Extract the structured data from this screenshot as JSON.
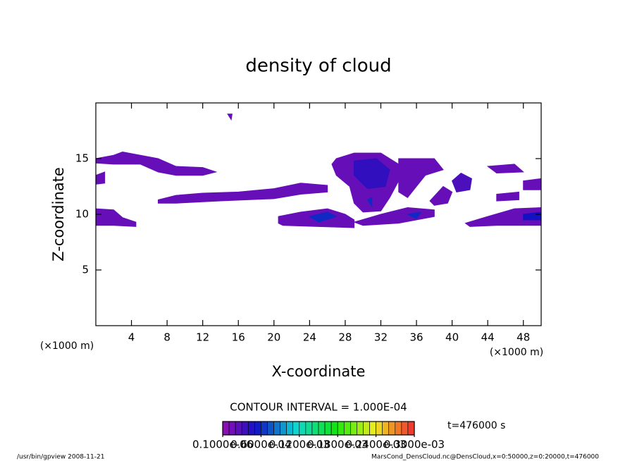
{
  "chart_data": {
    "type": "contour",
    "title": "density of cloud",
    "x_label": "X-coordinate",
    "y_label": "Z-coordinate",
    "x_unit_left": "(×1000 m)",
    "x_unit_right": "(×1000 m)",
    "xlim": [
      0,
      50
    ],
    "ylim": [
      0,
      20
    ],
    "xticks": [
      4,
      8,
      12,
      16,
      20,
      24,
      28,
      32,
      36,
      40,
      44,
      48
    ],
    "yticks": [
      5,
      10,
      15
    ],
    "contour_interval": "CONTOUR INTERVAL = 1.000E-04",
    "time_label": "t=476000 s",
    "colorbar_lim": [
      0,
      0.0003
    ],
    "colorbar_levels": [
      0,
      1e-05,
      2e-05,
      3e-05,
      4e-05,
      5e-05,
      6e-05,
      7e-05,
      8e-05,
      9e-05,
      0.0001,
      0.00011,
      0.00012,
      0.00013,
      0.00014,
      0.00015,
      0.00016,
      0.00017,
      0.00018,
      0.00019,
      0.0002,
      0.00021,
      0.00022,
      0.00023,
      0.00024,
      0.00025,
      0.00026,
      0.00027,
      0.00028,
      0.00029,
      0.0003
    ],
    "colorbar_ticks": [
      {
        "value": 1e-07,
        "label": "0.1000e-06"
      },
      {
        "value": 6e-05,
        "label": "0.6000e-04"
      },
      {
        "value": 0.00012,
        "label": "0.1200e-03"
      },
      {
        "value": 0.00018,
        "label": "0.1800e-03"
      },
      {
        "value": 0.00024,
        "label": "0.2400e-03"
      },
      {
        "value": 0.0003,
        "label": "0.3000e-03"
      }
    ],
    "regions": [
      {
        "x": [
          0,
          2,
          3,
          5,
          7,
          9,
          12,
          13.5,
          12,
          9,
          7,
          5,
          2,
          0
        ],
        "z": [
          15,
          15.3,
          15.6,
          15.3,
          15,
          14.3,
          14.2,
          13.8,
          13.5,
          13.5,
          13.8,
          14.5,
          14.5,
          14.6
        ],
        "value": 2e-05
      },
      {
        "x": [
          0,
          1,
          1,
          0
        ],
        "z": [
          13.5,
          13.8,
          12.8,
          12.7
        ],
        "value": 2e-05
      },
      {
        "x": [
          7,
          9,
          12,
          16,
          20,
          23,
          26,
          26,
          23,
          20,
          14,
          9,
          7
        ],
        "z": [
          11.3,
          11.7,
          11.9,
          12,
          12.3,
          12.8,
          12.6,
          12,
          11.8,
          11.4,
          11.2,
          11,
          11
        ],
        "value": 2e-05
      },
      {
        "x": [
          0,
          2,
          3,
          4.5,
          4.5,
          2,
          0
        ],
        "z": [
          10.5,
          10.4,
          9.7,
          9.3,
          8.9,
          9,
          9
        ],
        "value": 2e-05
      },
      {
        "x": [
          20.5,
          23,
          26,
          28,
          29,
          29,
          25,
          21,
          20.5
        ],
        "z": [
          9.8,
          10.2,
          10.5,
          10,
          9.5,
          8.8,
          8.9,
          9,
          9.2
        ],
        "value": 2e-05
      },
      {
        "x": [
          27,
          29,
          32,
          34,
          34,
          33,
          32,
          30,
          29,
          28.5,
          27,
          26.5
        ],
        "z": [
          15,
          15.5,
          15.5,
          14.5,
          13,
          11.5,
          10.3,
          10.2,
          11,
          12.5,
          13.5,
          14.5
        ],
        "value": 2e-05
      },
      {
        "x": [
          34,
          38,
          39,
          37,
          36,
          35,
          34
        ],
        "z": [
          15,
          15,
          14,
          13.5,
          12.5,
          11.5,
          12
        ],
        "value": 2e-05
      },
      {
        "x": [
          29,
          32,
          35,
          38,
          38,
          34,
          30
        ],
        "z": [
          9.3,
          10,
          10.6,
          10.4,
          9.8,
          9.2,
          9
        ],
        "value": 2e-05
      },
      {
        "x": [
          37.5,
          39,
          40,
          39.5,
          38
        ],
        "z": [
          11.2,
          12.5,
          12,
          11,
          10.8
        ],
        "value": 2e-05
      },
      {
        "x": [
          40,
          41,
          42.2,
          42,
          40.5
        ],
        "z": [
          13,
          13.7,
          13.2,
          12.2,
          12
        ],
        "value": 3e-05
      },
      {
        "x": [
          41.5,
          44,
          47,
          50,
          50,
          45,
          42
        ],
        "z": [
          9.2,
          9.8,
          10.5,
          10.6,
          9,
          9,
          8.9
        ],
        "value": 2e-05
      },
      {
        "x": [
          44,
          47,
          48,
          45
        ],
        "z": [
          14.3,
          14.5,
          13.8,
          13.7
        ],
        "value": 2e-05
      },
      {
        "x": [
          48,
          50,
          50,
          48
        ],
        "z": [
          13,
          13.2,
          12.2,
          12.2
        ],
        "value": 2e-05
      },
      {
        "x": [
          45,
          47.5,
          47.5,
          45
        ],
        "z": [
          11.8,
          12,
          11.3,
          11.2
        ],
        "value": 2e-05
      },
      {
        "x": [
          14.8,
          15.3,
          15.2
        ],
        "z": [
          19,
          19,
          18.5
        ],
        "value": 2e-05
      },
      {
        "x": [
          29,
          31.5,
          33,
          32.5,
          30.5,
          29
        ],
        "z": [
          14.8,
          15,
          14,
          12.5,
          12.3,
          13.5
        ],
        "value": 4e-05
      },
      {
        "x": [
          24,
          26,
          27,
          25
        ],
        "z": [
          9.8,
          10.2,
          9.8,
          9.3
        ],
        "value": 6e-05
      },
      {
        "x": [
          48,
          50,
          50,
          48
        ],
        "z": [
          10,
          10.2,
          9.5,
          9.5
        ],
        "value": 5e-05
      },
      {
        "x": [
          35,
          36.5,
          36
        ],
        "z": [
          10,
          10.2,
          9.6
        ],
        "value": 6e-05
      },
      {
        "x": [
          30.5,
          31,
          31
        ],
        "z": [
          11.3,
          11.5,
          10.7
        ],
        "value": 6e-05
      }
    ],
    "footer_left": "/usr/bin/gpview   2008-11-21",
    "footer_right": "MarsCond_DensCloud.nc@DensCloud,x=0:50000,z=0:20000,t=476000"
  }
}
